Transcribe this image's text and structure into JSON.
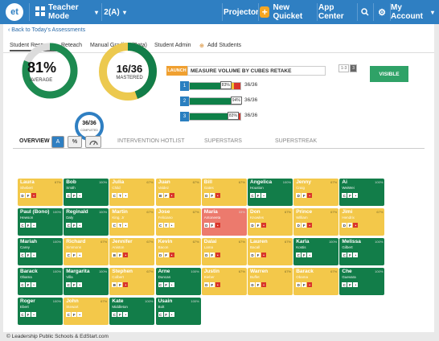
{
  "topbar": {
    "logo": "et",
    "mode": "Teacher Mode",
    "klass": "2(A)",
    "projector": "Projector",
    "new_quicket": "New Quicket",
    "app_center": "App Center",
    "account": "My Account"
  },
  "back_link": "Back to Today's Assessments",
  "tabs": [
    "Student Response",
    "Reteach",
    "Manual Grading (Beta)",
    "Student Admin",
    "Add Students"
  ],
  "summary": {
    "average_value": "81%",
    "average_label": "AVERAGE",
    "mastered_value": "16/36",
    "mastered_label": "MASTERED",
    "completed_value": "36/36",
    "completed_label": "COMPLETED",
    "average_fraction": 0.81
  },
  "assessment": {
    "launch": "LAUNCH",
    "title": "MEASURE VOLUME BY CUBES RETAKE",
    "pager": [
      "1-3",
      "3"
    ],
    "visible": "VISIBLE",
    "questions": [
      {
        "num": "1",
        "score": "36/36",
        "mark": "83%",
        "segments": [
          0.72,
          0.16,
          0.12
        ]
      },
      {
        "num": "2",
        "score": "36/36",
        "mark": "94%",
        "segments": [
          0.92,
          0.06,
          0.02
        ]
      },
      {
        "num": "3",
        "score": "36/36",
        "mark": "83%",
        "segments": [
          0.86,
          0.08,
          0.06
        ]
      }
    ]
  },
  "overview": {
    "label": "OVERVIEW",
    "btn_a": "A",
    "btn_pct": "%",
    "btn_speed": "speed-icon",
    "tabs": [
      "INTERVENTION HOTLIST",
      "SUPERSTARS",
      "SUPERSTREAK"
    ]
  },
  "colors": {
    "green": "#127d49",
    "yellow": "#f3c84a",
    "red": "#ec7a6d",
    "blue": "#2f7fc2"
  },
  "students": [
    {
      "first": "Laura",
      "last": "Shebert",
      "pct": "67%",
      "status": "yellow",
      "marks": [
        "D",
        "F",
        "rd"
      ]
    },
    {
      "first": "Bob",
      "last": "Smith",
      "pct": "100%",
      "status": "green",
      "marks": [
        "C",
        "F",
        "w"
      ]
    },
    {
      "first": "Julia",
      "last": "Child",
      "pct": "67%",
      "status": "yellow",
      "marks": [
        "C",
        "T",
        "w"
      ]
    },
    {
      "first": "Juan",
      "last": "Valdez",
      "pct": "67%",
      "status": "yellow",
      "marks": [
        "B",
        "F",
        "rd"
      ]
    },
    {
      "first": "Bill",
      "last": "Gates",
      "pct": "67%",
      "status": "yellow",
      "marks": [
        "D",
        "F",
        "rd"
      ]
    },
    {
      "first": "Angelica",
      "last": "Houston",
      "pct": "100%",
      "status": "green",
      "marks": [
        "C",
        "F",
        "w"
      ]
    },
    {
      "first": "Jenny",
      "last": "Craig",
      "pct": "67%",
      "status": "yellow",
      "marks": [
        "D",
        "F",
        "rd"
      ]
    },
    {
      "first": "Ai",
      "last": "WeiWei",
      "pct": "100%",
      "status": "green",
      "marks": [
        "C",
        "F",
        "w"
      ]
    },
    {
      "first": "Paul (Bono)",
      "last": "Hewson",
      "pct": "100%",
      "status": "green",
      "marks": [
        "C",
        "F",
        "w"
      ]
    },
    {
      "first": "Reginald",
      "last": "Daly",
      "pct": "100%",
      "status": "green",
      "marks": [
        "C",
        "F",
        "w"
      ]
    },
    {
      "first": "Martin",
      "last": "King, Jr",
      "pct": "67%",
      "status": "yellow",
      "marks": [
        "C",
        "T",
        "w"
      ]
    },
    {
      "first": "Jose",
      "last": "Feliciano",
      "pct": "67%",
      "status": "yellow",
      "marks": [
        "C",
        "T",
        "w"
      ]
    },
    {
      "first": "Maria",
      "last": "Antoneeta",
      "pct": "33%",
      "status": "red",
      "marks": [
        "D",
        "F",
        "rd"
      ]
    },
    {
      "first": "Don",
      "last": "Knowles",
      "pct": "67%",
      "status": "yellow",
      "marks": [
        "D",
        "F",
        "rd"
      ]
    },
    {
      "first": "Prince",
      "last": "William",
      "pct": "67%",
      "status": "yellow",
      "marks": [
        "D",
        "F",
        "rd"
      ]
    },
    {
      "first": "Jimi",
      "last": "Hendrix",
      "pct": "67%",
      "status": "yellow",
      "marks": [
        "D",
        "F",
        "rd"
      ]
    },
    {
      "first": "Mariah",
      "last": "Carey",
      "pct": "100%",
      "status": "green",
      "marks": [
        "C",
        "F",
        "w"
      ]
    },
    {
      "first": "Richard",
      "last": "Simmons",
      "pct": "67%",
      "status": "yellow",
      "marks": [
        "C",
        "F",
        "w"
      ]
    },
    {
      "first": "Jennifer",
      "last": "Aniston",
      "pct": "67%",
      "status": "yellow",
      "marks": [
        "B",
        "F",
        "rd"
      ]
    },
    {
      "first": "Kevin",
      "last": "Bacon",
      "pct": "67%",
      "status": "yellow",
      "marks": [
        "D",
        "F",
        "rd"
      ]
    },
    {
      "first": "Dalai",
      "last": "Lama",
      "pct": "67%",
      "status": "yellow",
      "marks": [
        "D",
        "F",
        "rd"
      ]
    },
    {
      "first": "Lauren",
      "last": "Bacall",
      "pct": "67%",
      "status": "yellow",
      "marks": [
        "D",
        "F",
        "rd"
      ]
    },
    {
      "first": "Karla",
      "last": "Kostis",
      "pct": "100%",
      "status": "green",
      "marks": [
        "C",
        "F",
        "w"
      ]
    },
    {
      "first": "Melissa",
      "last": "Gilbert",
      "pct": "100%",
      "status": "green",
      "marks": [
        "C",
        "F",
        "w"
      ]
    },
    {
      "first": "Barack",
      "last": "Obama",
      "pct": "100%",
      "status": "green",
      "marks": [
        "C",
        "F",
        "w"
      ]
    },
    {
      "first": "Margarita",
      "last": "Villa",
      "pct": "100%",
      "status": "green",
      "marks": [
        "C",
        "F",
        "w"
      ]
    },
    {
      "first": "Stephen",
      "last": "Colbert",
      "pct": "67%",
      "status": "yellow",
      "marks": [
        "B",
        "F",
        "rd"
      ]
    },
    {
      "first": "Arne",
      "last": "Duncan",
      "pct": "100%",
      "status": "green",
      "marks": [
        "C",
        "F",
        "w"
      ]
    },
    {
      "first": "Justin",
      "last": "Bieber",
      "pct": "67%",
      "status": "yellow",
      "marks": [
        "D",
        "F",
        "rd"
      ]
    },
    {
      "first": "Warren",
      "last": "Buffet",
      "pct": "67%",
      "status": "yellow",
      "marks": [
        "D",
        "F",
        "rd"
      ]
    },
    {
      "first": "Barack",
      "last": "Obama",
      "pct": "67%",
      "status": "yellow",
      "marks": [
        "D",
        "F",
        "rd"
      ]
    },
    {
      "first": "Che",
      "last": "Guevara",
      "pct": "100%",
      "status": "green",
      "marks": [
        "C",
        "F",
        "w"
      ]
    },
    {
      "first": "Roger",
      "last": "Ebert",
      "pct": "100%",
      "status": "green",
      "marks": [
        "C",
        "F",
        "w"
      ]
    },
    {
      "first": "John",
      "last": "Stewart",
      "pct": "67%",
      "status": "yellow",
      "marks": [
        "C",
        "F",
        "w"
      ]
    },
    {
      "first": "Kate",
      "last": "Middleton",
      "pct": "100%",
      "status": "green",
      "marks": [
        "C",
        "F",
        "w"
      ]
    },
    {
      "first": "Usain",
      "last": "Bolt",
      "pct": "100%",
      "status": "green",
      "marks": [
        "C",
        "F",
        "w"
      ]
    }
  ],
  "footer": "© Leadership Public Schools & EdStart.com"
}
